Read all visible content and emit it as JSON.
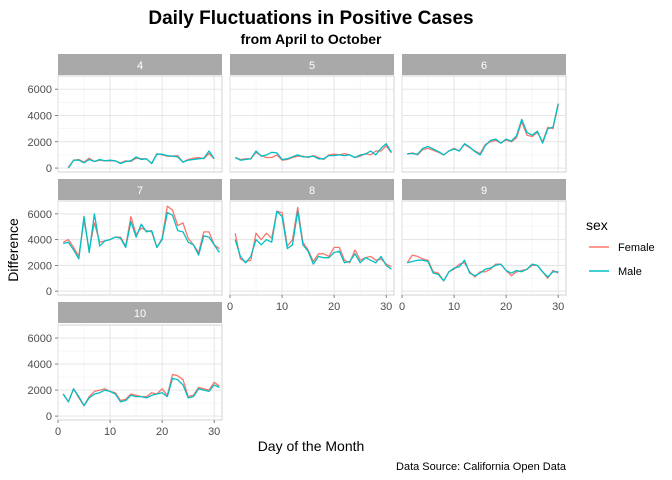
{
  "chart_data": {
    "type": "line",
    "title": "Daily Fluctuations in Positive Cases",
    "subtitle": "from April to October",
    "xlabel": "Day of the Month",
    "ylabel": "Difference",
    "caption": "Data Source: California Open Data",
    "xlim": [
      0,
      31.5
    ],
    "ylim": [
      -300,
      7000
    ],
    "x_ticks": [
      0,
      10,
      20,
      30
    ],
    "y_ticks": [
      0,
      2000,
      4000,
      6000
    ],
    "grid": true,
    "legend": {
      "title": "sex",
      "placement": "right",
      "entries": [
        {
          "name": "Female",
          "color": "#F8766D"
        },
        {
          "name": "Male",
          "color": "#00BFC4"
        }
      ]
    },
    "panels": [
      {
        "label": "4",
        "x": [
          2,
          3,
          4,
          5,
          6,
          7,
          8,
          9,
          10,
          11,
          12,
          13,
          14,
          15,
          16,
          17,
          18,
          19,
          20,
          21,
          22,
          23,
          24,
          25,
          26,
          27,
          28,
          29,
          30
        ],
        "series": [
          {
            "name": "Female",
            "values": [
              50,
              600,
              650,
              450,
              750,
              500,
              600,
              550,
              550,
              550,
              400,
              550,
              500,
              750,
              700,
              700,
              350,
              1100,
              1000,
              900,
              900,
              950,
              450,
              650,
              750,
              800,
              700,
              1100,
              700
            ]
          },
          {
            "name": "Male",
            "values": [
              0,
              600,
              600,
              400,
              650,
              500,
              650,
              550,
              600,
              550,
              350,
              500,
              550,
              850,
              650,
              700,
              350,
              1050,
              1050,
              950,
              900,
              850,
              450,
              600,
              650,
              700,
              750,
              1300,
              700
            ]
          }
        ]
      },
      {
        "label": "5",
        "x": [
          1,
          2,
          3,
          4,
          5,
          6,
          7,
          8,
          9,
          10,
          11,
          12,
          13,
          14,
          15,
          16,
          17,
          18,
          19,
          20,
          21,
          22,
          23,
          24,
          25,
          26,
          27,
          28,
          29,
          30,
          31
        ],
        "series": [
          {
            "name": "Female",
            "values": [
              800,
              650,
              700,
              700,
              1200,
              950,
              800,
              800,
              1000,
              600,
              650,
              800,
              900,
              900,
              800,
              950,
              800,
              650,
              1000,
              1050,
              1000,
              1100,
              1000,
              800,
              900,
              1100,
              1000,
              1300,
              1300,
              1700,
              1150
            ]
          },
          {
            "name": "Male",
            "values": [
              800,
              600,
              650,
              700,
              1300,
              900,
              1000,
              1200,
              1150,
              650,
              700,
              850,
              1000,
              850,
              850,
              900,
              700,
              700,
              950,
              950,
              1000,
              950,
              1000,
              800,
              1000,
              1050,
              1300,
              1000,
              1500,
              1850,
              1200
            ]
          }
        ]
      },
      {
        "label": "6",
        "x": [
          1,
          2,
          3,
          4,
          5,
          6,
          7,
          8,
          9,
          10,
          11,
          12,
          13,
          14,
          15,
          16,
          17,
          18,
          19,
          20,
          21,
          22,
          23,
          24,
          25,
          26,
          27,
          28,
          29,
          30
        ],
        "series": [
          {
            "name": "Female",
            "values": [
              1050,
              1150,
              1000,
              1400,
              1500,
              1350,
              1200,
              1000,
              1300,
              1500,
              1300,
              1800,
              1550,
              1300,
              1100,
              1800,
              2000,
              2100,
              1900,
              2150,
              2000,
              2300,
              3500,
              2500,
              2400,
              2700,
              2000,
              3100,
              3000,
              4800
            ]
          },
          {
            "name": "Male",
            "values": [
              1100,
              1100,
              1050,
              1500,
              1650,
              1450,
              1250,
              1000,
              1300,
              1450,
              1300,
              1850,
              1600,
              1250,
              1000,
              1700,
              2100,
              2200,
              1900,
              2200,
              2050,
              2450,
              3700,
              2700,
              2500,
              2800,
              1900,
              3000,
              3100,
              4900
            ]
          }
        ]
      },
      {
        "label": "7",
        "x": [
          1,
          2,
          3,
          4,
          5,
          6,
          7,
          8,
          9,
          10,
          11,
          12,
          13,
          14,
          15,
          16,
          17,
          18,
          19,
          20,
          21,
          22,
          23,
          24,
          25,
          26,
          27,
          28,
          29,
          30,
          31
        ],
        "series": [
          {
            "name": "Female",
            "values": [
              3800,
              4000,
              3400,
              2700,
              5500,
              3200,
              5300,
              3800,
              3900,
              4000,
              4200,
              4200,
              3500,
              5800,
              4400,
              4900,
              4700,
              4600,
              3400,
              4100,
              6600,
              6300,
              5100,
              5300,
              4100,
              3600,
              3000,
              4600,
              4600,
              3600,
              3300
            ]
          },
          {
            "name": "Male",
            "values": [
              3700,
              3800,
              3200,
              2500,
              5800,
              3000,
              6000,
              3500,
              3900,
              4000,
              4200,
              4100,
              3400,
              5400,
              4200,
              5200,
              4600,
              4700,
              3400,
              4000,
              6100,
              5900,
              4700,
              4600,
              3800,
              3600,
              2800,
              4300,
              4200,
              3600,
              3000
            ]
          }
        ]
      },
      {
        "label": "8",
        "x": [
          1,
          2,
          3,
          4,
          5,
          6,
          7,
          8,
          9,
          10,
          11,
          12,
          13,
          14,
          15,
          16,
          17,
          18,
          19,
          20,
          21,
          22,
          23,
          24,
          25,
          26,
          27,
          28,
          29,
          30,
          31
        ],
        "series": [
          {
            "name": "Female",
            "values": [
              4500,
              2500,
              2300,
              2400,
              4500,
              4000,
              4500,
              4100,
              6200,
              6100,
              3500,
              4000,
              6500,
              3800,
              3200,
              2300,
              2900,
              2900,
              2700,
              3400,
              3400,
              2400,
              2200,
              3200,
              2400,
              2600,
              2700,
              2400,
              2500,
              2100,
              1900
            ]
          },
          {
            "name": "Male",
            "values": [
              4000,
              2700,
              2200,
              2700,
              4000,
              3600,
              4000,
              3800,
              6200,
              5800,
              3300,
              3600,
              6200,
              3600,
              3100,
              2100,
              2700,
              2600,
              2600,
              3000,
              3100,
              2200,
              2300,
              2900,
              2200,
              2600,
              2400,
              2200,
              2700,
              2000,
              1700
            ]
          }
        ]
      },
      {
        "label": "9",
        "x": [
          1,
          2,
          3,
          4,
          5,
          6,
          7,
          8,
          9,
          10,
          11,
          12,
          13,
          14,
          15,
          16,
          17,
          18,
          19,
          20,
          21,
          22,
          23,
          24,
          25,
          26,
          27,
          28,
          29,
          30
        ],
        "series": [
          {
            "name": "Female",
            "values": [
              2200,
              2800,
              2700,
              2500,
              2400,
              1500,
              1400,
              800,
              1500,
              1700,
              2100,
              2200,
              1500,
              1100,
              1500,
              1500,
              1700,
              2100,
              2100,
              1600,
              1200,
              1500,
              1600,
              1700,
              2000,
              2000,
              1500,
              1000,
              1600,
              1400
            ]
          },
          {
            "name": "Male",
            "values": [
              2200,
              2300,
              2400,
              2400,
              2300,
              1400,
              1300,
              800,
              1500,
              1800,
              1900,
              2400,
              1400,
              1200,
              1400,
              1700,
              1800,
              2000,
              2100,
              1600,
              1400,
              1600,
              1500,
              1700,
              2100,
              2000,
              1500,
              1100,
              1500,
              1500
            ]
          }
        ]
      },
      {
        "label": "10",
        "x": [
          1,
          2,
          3,
          4,
          5,
          6,
          7,
          8,
          9,
          10,
          11,
          12,
          13,
          14,
          15,
          16,
          17,
          18,
          19,
          20,
          21,
          22,
          23,
          24,
          25,
          26,
          27,
          28,
          29,
          30,
          31
        ],
        "series": [
          {
            "name": "Female",
            "values": [
              1700,
              1100,
              2100,
              1400,
              800,
              1500,
              1900,
              2000,
              2100,
              1900,
              1800,
              1200,
              1300,
              1700,
              1600,
              1500,
              1500,
              1800,
              1700,
              2100,
              1600,
              3200,
              3100,
              2800,
              1500,
              1600,
              2200,
              2100,
              2000,
              2600,
              2300
            ]
          },
          {
            "name": "Male",
            "values": [
              1700,
              1100,
              2100,
              1500,
              800,
              1400,
              1700,
              1800,
              2000,
              1900,
              1700,
              1100,
              1200,
              1600,
              1500,
              1500,
              1400,
              1600,
              1700,
              1800,
              1500,
              2900,
              2800,
              2400,
              1400,
              1500,
              2100,
              2000,
              1900,
              2400,
              2200
            ]
          }
        ]
      }
    ]
  }
}
